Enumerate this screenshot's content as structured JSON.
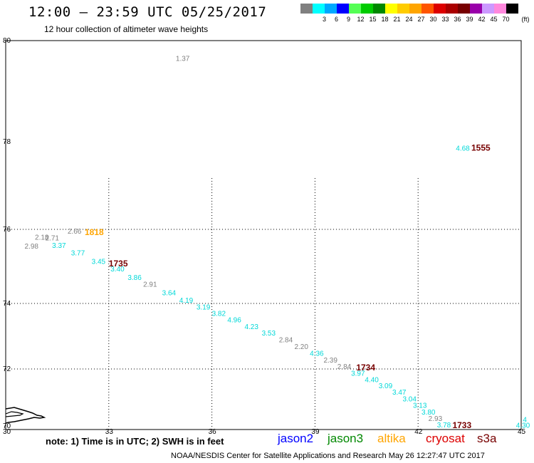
{
  "header": {
    "title": "12:00 – 23:59 UTC 05/25/2017",
    "subtitle": "12 hour collection of altimeter wave heights"
  },
  "legend": {
    "bins": [
      {
        "label": "",
        "color": "#808080"
      },
      {
        "label": "3",
        "color": "#00ffff"
      },
      {
        "label": "6",
        "color": "#00a8ff"
      },
      {
        "label": "9",
        "color": "#0000ff"
      },
      {
        "label": "12",
        "color": "#55ff55"
      },
      {
        "label": "15",
        "color": "#00cc00"
      },
      {
        "label": "18",
        "color": "#008800"
      },
      {
        "label": "21",
        "color": "#ffff00"
      },
      {
        "label": "24",
        "color": "#ffcc00"
      },
      {
        "label": "27",
        "color": "#ffa500"
      },
      {
        "label": "30",
        "color": "#ff5500"
      },
      {
        "label": "33",
        "color": "#dd0000"
      },
      {
        "label": "36",
        "color": "#aa0000"
      },
      {
        "label": "39",
        "color": "#770000"
      },
      {
        "label": "42",
        "color": "#9900aa"
      },
      {
        "label": "45",
        "color": "#cc99ff"
      },
      {
        "label": "70",
        "color": "#ff88dd"
      },
      {
        "label": "",
        "color": "#000000"
      }
    ],
    "unit": "(ft)"
  },
  "map": {
    "lon_range": [
      30,
      45
    ],
    "lat_range": [
      70,
      80
    ],
    "lon_ticks": [
      "30",
      "33",
      "36",
      "39",
      "42",
      "45"
    ],
    "lat_ticks": [
      "70",
      "72",
      "74",
      "76",
      "78",
      "80"
    ],
    "observations": [
      {
        "lon": 34.95,
        "lat": 79.6,
        "value": "1.37",
        "color": "#808080"
      },
      {
        "lon": 43.1,
        "lat": 77.8,
        "value": "4.68",
        "color": "#00d8d8"
      },
      {
        "lon": 30.85,
        "lat": 75.72,
        "value": "2.18",
        "color": "#808080"
      },
      {
        "lon": 31.15,
        "lat": 75.7,
        "value": "2.71",
        "color": "#808080"
      },
      {
        "lon": 30.55,
        "lat": 75.48,
        "value": "2.98",
        "color": "#808080"
      },
      {
        "lon": 31.8,
        "lat": 75.88,
        "value": "2.66",
        "color": "#808080"
      },
      {
        "lon": 31.35,
        "lat": 75.5,
        "value": "3.37",
        "color": "#00d8d8"
      },
      {
        "lon": 31.9,
        "lat": 75.3,
        "value": "3.77",
        "color": "#00d8d8"
      },
      {
        "lon": 32.5,
        "lat": 75.07,
        "value": "3.45",
        "color": "#00d8d8"
      },
      {
        "lon": 33.05,
        "lat": 74.87,
        "value": "3.40",
        "color": "#00d8d8"
      },
      {
        "lon": 33.55,
        "lat": 74.63,
        "value": "3.86",
        "color": "#00d8d8"
      },
      {
        "lon": 34.0,
        "lat": 74.45,
        "value": "2.91",
        "color": "#808080"
      },
      {
        "lon": 34.55,
        "lat": 74.22,
        "value": "3.64",
        "color": "#00d8d8"
      },
      {
        "lon": 35.05,
        "lat": 74.02,
        "value": "4.19",
        "color": "#00d8d8"
      },
      {
        "lon": 35.55,
        "lat": 73.82,
        "value": "3.19",
        "color": "#00d8d8"
      },
      {
        "lon": 36.0,
        "lat": 73.62,
        "value": "3.82",
        "color": "#00d8d8"
      },
      {
        "lon": 36.45,
        "lat": 73.42,
        "value": "4.96",
        "color": "#00d8d8"
      },
      {
        "lon": 36.95,
        "lat": 73.22,
        "value": "4.23",
        "color": "#00d8d8"
      },
      {
        "lon": 37.45,
        "lat": 73.02,
        "value": "3.53",
        "color": "#00d8d8"
      },
      {
        "lon": 37.95,
        "lat": 72.82,
        "value": "2.84",
        "color": "#808080"
      },
      {
        "lon": 38.4,
        "lat": 72.61,
        "value": "2.20",
        "color": "#808080"
      },
      {
        "lon": 38.85,
        "lat": 72.4,
        "value": "4.36",
        "color": "#00d8d8"
      },
      {
        "lon": 39.25,
        "lat": 72.2,
        "value": "2.39",
        "color": "#808080"
      },
      {
        "lon": 39.65,
        "lat": 72.0,
        "value": "2.84",
        "color": "#808080"
      },
      {
        "lon": 40.05,
        "lat": 71.78,
        "value": "3.97",
        "color": "#00d8d8"
      },
      {
        "lon": 40.45,
        "lat": 71.57,
        "value": "4.40",
        "color": "#00d8d8"
      },
      {
        "lon": 40.85,
        "lat": 71.37,
        "value": "3.09",
        "color": "#00d8d8"
      },
      {
        "lon": 41.25,
        "lat": 71.15,
        "value": "3.47",
        "color": "#00d8d8"
      },
      {
        "lon": 41.55,
        "lat": 70.93,
        "value": "3.04",
        "color": "#00d8d8"
      },
      {
        "lon": 41.85,
        "lat": 70.72,
        "value": "3.13",
        "color": "#00d8d8"
      },
      {
        "lon": 42.1,
        "lat": 70.5,
        "value": "3.80",
        "color": "#00d8d8"
      },
      {
        "lon": 42.3,
        "lat": 70.28,
        "value": "2.93",
        "color": "#808080"
      },
      {
        "lon": 42.55,
        "lat": 70.07,
        "value": "3.78",
        "color": "#00d8d8"
      },
      {
        "lon": 44.85,
        "lat": 70.06,
        "value": "4.30",
        "color": "#00d8d8"
      },
      {
        "lon": 45.05,
        "lat": 70.25,
        "value": "4",
        "color": "#00d8d8"
      }
    ],
    "pass_times": [
      {
        "lon": 43.55,
        "lat": 77.8,
        "value": "1555",
        "color": "#770000"
      },
      {
        "lon": 32.3,
        "lat": 75.85,
        "value": "1818",
        "color": "#ffa500"
      },
      {
        "lon": 33.0,
        "lat": 75.0,
        "value": "1735",
        "color": "#770000"
      },
      {
        "lon": 40.2,
        "lat": 71.95,
        "value": "1734",
        "color": "#770000"
      },
      {
        "lon": 43.0,
        "lat": 70.05,
        "value": "1733",
        "color": "#770000"
      }
    ]
  },
  "note": "note: 1) Time is in UTC; 2) SWH is in feet",
  "satellites": [
    {
      "name": "jason2",
      "color": "#0000ff"
    },
    {
      "name": "jason3",
      "color": "#008800"
    },
    {
      "name": "altika",
      "color": "#ffa500"
    },
    {
      "name": "cryosat",
      "color": "#dd0000"
    },
    {
      "name": "s3a",
      "color": "#770000"
    }
  ],
  "footer": "NOAA/NESDIS Center for Satellite Applications and Research    May 26 12:27:47 UTC 2017"
}
